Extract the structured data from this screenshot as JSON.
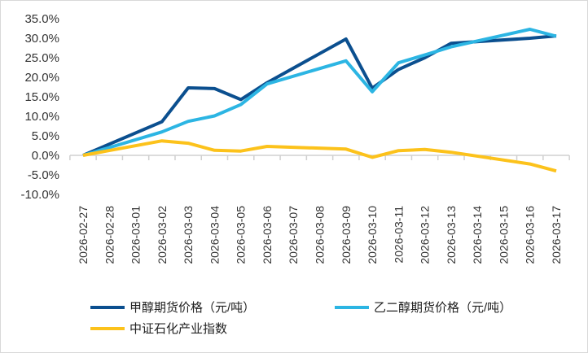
{
  "chart_data": {
    "type": "line",
    "categories": [
      "2026-02-27",
      "2026-02-28",
      "2026-03-01",
      "2026-03-02",
      "2026-03-03",
      "2026-03-04",
      "2026-03-05",
      "2026-03-06",
      "2026-03-07",
      "2026-03-08",
      "2026-03-09",
      "2026-03-10",
      "2026-03-11",
      "2026-03-12",
      "2026-03-13",
      "2026-03-14",
      "2026-03-15",
      "2026-03-16",
      "2026-03-17"
    ],
    "yticks": [
      "35.0%",
      "30.0%",
      "25.0%",
      "20.0%",
      "15.0%",
      "10.0%",
      "5.0%",
      "0.0%",
      "-5.0%",
      "-10.0%"
    ],
    "ylim": [
      -10,
      35
    ],
    "grid": false,
    "legend_position": "bottom",
    "series": [
      {
        "name": "甲醇期货价格（元/吨）",
        "color": "#0b4f8f",
        "values": [
          0,
          null,
          null,
          8.6,
          17.3,
          17.1,
          14.3,
          18.6,
          null,
          null,
          29.8,
          17.2,
          22.0,
          25.0,
          28.7,
          null,
          null,
          30.0,
          30.6
        ]
      },
      {
        "name": "乙二醇期货价格（元/吨）",
        "color": "#2cb5e3",
        "values": [
          0,
          null,
          null,
          6.0,
          8.7,
          10.1,
          13.0,
          18.3,
          null,
          null,
          24.2,
          16.3,
          23.7,
          25.7,
          27.8,
          null,
          null,
          32.3,
          30.5
        ]
      },
      {
        "name": "中证石化产业指数",
        "color": "#fcc21b",
        "values": [
          0,
          null,
          null,
          3.7,
          3.1,
          1.3,
          1.1,
          2.3,
          null,
          null,
          1.6,
          -0.5,
          1.2,
          1.5,
          0.8,
          null,
          null,
          -2.2,
          -4.0
        ]
      }
    ]
  }
}
